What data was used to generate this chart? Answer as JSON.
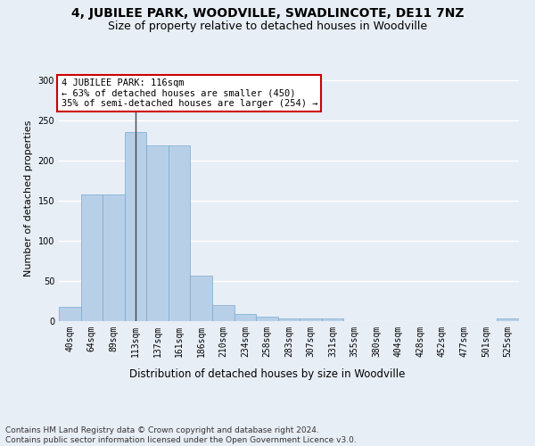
{
  "title": "4, JUBILEE PARK, WOODVILLE, SWADLINCOTE, DE11 7NZ",
  "subtitle": "Size of property relative to detached houses in Woodville",
  "xlabel": "Distribution of detached houses by size in Woodville",
  "ylabel": "Number of detached properties",
  "categories": [
    "40sqm",
    "64sqm",
    "89sqm",
    "113sqm",
    "137sqm",
    "161sqm",
    "186sqm",
    "210sqm",
    "234sqm",
    "258sqm",
    "283sqm",
    "307sqm",
    "331sqm",
    "355sqm",
    "380sqm",
    "404sqm",
    "428sqm",
    "452sqm",
    "477sqm",
    "501sqm",
    "525sqm"
  ],
  "values": [
    18,
    158,
    158,
    235,
    218,
    218,
    57,
    20,
    9,
    6,
    3,
    3,
    3,
    0,
    0,
    0,
    0,
    0,
    0,
    0,
    3
  ],
  "bar_color": "#b8cfe8",
  "bar_edge_color": "#7aaad0",
  "annotation_text": "4 JUBILEE PARK: 116sqm\n← 63% of detached houses are smaller (450)\n35% of semi-detached houses are larger (254) →",
  "annotation_box_facecolor": "#ffffff",
  "annotation_box_edgecolor": "#cc0000",
  "ylim": [
    0,
    305
  ],
  "yticks": [
    0,
    50,
    100,
    150,
    200,
    250,
    300
  ],
  "background_color": "#e8eef6",
  "grid_color": "#ffffff",
  "footer_line1": "Contains HM Land Registry data © Crown copyright and database right 2024.",
  "footer_line2": "Contains public sector information licensed under the Open Government Licence v3.0.",
  "title_fontsize": 10,
  "subtitle_fontsize": 9,
  "xlabel_fontsize": 8.5,
  "ylabel_fontsize": 8,
  "tick_fontsize": 7,
  "annotation_fontsize": 7.5,
  "footer_fontsize": 6.5
}
